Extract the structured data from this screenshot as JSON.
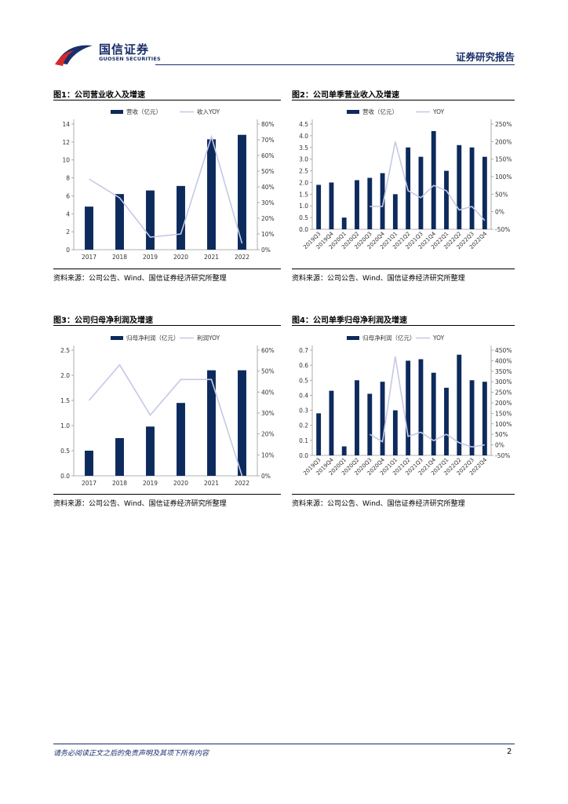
{
  "header": {
    "logo_cn": "国信证券",
    "logo_en": "GUOSEN SECURITIES",
    "report_type": "证券研究报告"
  },
  "colors": {
    "bar": "#0d2a5c",
    "line": "#c5c8e6",
    "brand": "#1a2f6b",
    "logo_red": "#d42a2a"
  },
  "figures": [
    {
      "title": "图1：公司营业收入及增速",
      "source": "资料来源：公司公告、Wind、国信证券经济研究所整理"
    },
    {
      "title": "图2：公司单季营业收入及增速",
      "source": "资料来源：公司公告、Wind、国信证券经济研究所整理"
    },
    {
      "title": "图3：公司归母净利润及增速",
      "source": "资料来源：公司公告、Wind、国信证券经济研究所整理"
    },
    {
      "title": "图4：公司单季归母净利润及增速",
      "source": "资料来源：公司公告、Wind、国信证券经济研究所整理"
    }
  ],
  "chart_data": [
    {
      "type": "bar",
      "categories": [
        "2017",
        "2018",
        "2019",
        "2020",
        "2021",
        "2022"
      ],
      "series": [
        {
          "name": "营收（亿元）",
          "values": [
            4.8,
            6.2,
            6.6,
            7.1,
            12.3,
            12.8
          ],
          "axis": "left",
          "kind": "bar"
        },
        {
          "name": "收入YOY",
          "values": [
            45,
            33,
            8,
            10,
            72,
            4
          ],
          "axis": "right",
          "kind": "line"
        }
      ],
      "yticks_left": [
        "0",
        "2",
        "4",
        "6",
        "8",
        "10",
        "12",
        "14"
      ],
      "yticks_right": [
        "0%",
        "10%",
        "20%",
        "30%",
        "40%",
        "50%",
        "60%",
        "70%",
        "80%"
      ],
      "ylim": [
        0,
        14
      ],
      "y2lim": [
        0,
        80
      ],
      "legend": "top"
    },
    {
      "type": "bar",
      "categories": [
        "2019Q3",
        "2019Q4",
        "2020Q1",
        "2020Q2",
        "2020Q3",
        "2020Q4",
        "2021Q1",
        "2021Q2",
        "2021Q3",
        "2021Q4",
        "2022Q1",
        "2022Q2",
        "2022Q3",
        "2022Q4"
      ],
      "series": [
        {
          "name": "营收（亿元）",
          "values": [
            1.9,
            2.0,
            0.5,
            2.1,
            2.2,
            2.4,
            1.5,
            3.5,
            3.1,
            4.2,
            2.5,
            3.6,
            3.5,
            3.1
          ],
          "axis": "left",
          "kind": "bar"
        },
        {
          "name": "YOY",
          "values": [
            null,
            null,
            null,
            null,
            15,
            15,
            200,
            60,
            40,
            75,
            60,
            5,
            15,
            -25
          ],
          "axis": "right",
          "kind": "line"
        }
      ],
      "yticks_left": [
        "0.0",
        "0.5",
        "1.0",
        "1.5",
        "2.0",
        "2.5",
        "3.0",
        "3.5",
        "4.0",
        "4.5"
      ],
      "yticks_right": [
        "-50%",
        "0%",
        "50%",
        "100%",
        "150%",
        "200%",
        "250%"
      ],
      "ylim": [
        0,
        4.5
      ],
      "y2lim": [
        -50,
        250
      ],
      "legend": "top"
    },
    {
      "type": "bar",
      "categories": [
        "2017",
        "2018",
        "2019",
        "2020",
        "2021",
        "2022"
      ],
      "series": [
        {
          "name": "归母净利润（亿元）",
          "values": [
            0.5,
            0.75,
            0.98,
            1.45,
            2.1,
            2.1
          ],
          "axis": "left",
          "kind": "bar"
        },
        {
          "name": "利润YOY",
          "values": [
            36,
            53,
            29,
            46,
            46,
            0
          ],
          "axis": "right",
          "kind": "line"
        }
      ],
      "yticks_left": [
        "0.0",
        "0.5",
        "1.0",
        "1.5",
        "2.0",
        "2.5"
      ],
      "yticks_right": [
        "0%",
        "10%",
        "20%",
        "30%",
        "40%",
        "50%",
        "60%"
      ],
      "ylim": [
        0,
        2.5
      ],
      "y2lim": [
        0,
        60
      ],
      "legend": "top"
    },
    {
      "type": "bar",
      "categories": [
        "2019Q3",
        "2019Q4",
        "2020Q1",
        "2020Q2",
        "2020Q3",
        "2020Q4",
        "2021Q1",
        "2021Q2",
        "2021Q3",
        "2021Q4",
        "2022Q1",
        "2022Q2",
        "2022Q3",
        "2022Q4"
      ],
      "series": [
        {
          "name": "归母净利润（亿元）",
          "values": [
            0.28,
            0.43,
            0.06,
            0.5,
            0.41,
            0.49,
            0.3,
            0.63,
            0.64,
            0.55,
            0.45,
            0.67,
            0.5,
            0.49
          ],
          "axis": "left",
          "kind": "bar"
        },
        {
          "name": "YOY",
          "values": [
            null,
            null,
            null,
            null,
            50,
            15,
            420,
            40,
            60,
            20,
            50,
            10,
            -10,
            0
          ],
          "axis": "right",
          "kind": "line"
        }
      ],
      "yticks_left": [
        "0.0",
        "0.1",
        "0.2",
        "0.3",
        "0.4",
        "0.5",
        "0.6",
        "0.7"
      ],
      "yticks_right": [
        "-50%",
        "0%",
        "50%",
        "100%",
        "150%",
        "200%",
        "250%",
        "300%",
        "350%",
        "400%",
        "450%"
      ],
      "ylim": [
        0,
        0.7
      ],
      "y2lim": [
        -50,
        450
      ],
      "legend": "top"
    }
  ],
  "footer": {
    "disclaimer": "请务必阅读正文之后的免责声明及其项下所有内容",
    "page_number": "2"
  }
}
